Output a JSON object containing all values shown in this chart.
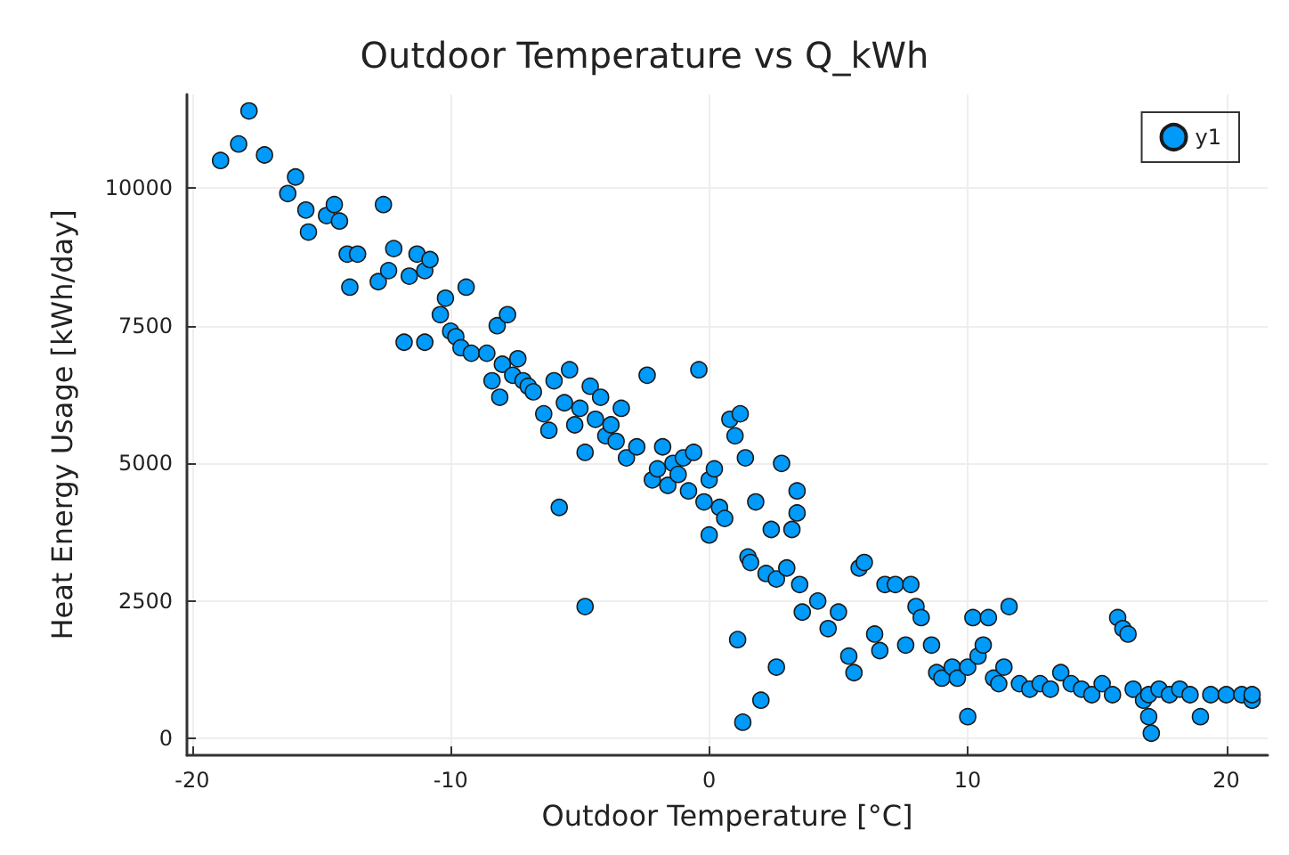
{
  "chart_data": {
    "type": "scatter",
    "title": "Outdoor Temperature vs Q_kWh",
    "xlabel": "Outdoor Temperature [°C]",
    "ylabel": "Heat Energy Usage [kWh/day]",
    "xlim": [
      -20.2,
      21.6
    ],
    "xticks": [
      -20,
      -10,
      0,
      10,
      20
    ],
    "ylim": [
      -300,
      11700
    ],
    "yticks": [
      0,
      2500,
      5000,
      7500,
      10000
    ],
    "grid": true,
    "legend": "top right",
    "marker": "circle",
    "series": [
      {
        "name": "y1",
        "color": "#009afa",
        "x": [
          -18.9,
          -18.2,
          -17.8,
          -17.2,
          -16.3,
          -16,
          -15.6,
          -15.5,
          -14.8,
          -14.5,
          -14.3,
          -14,
          -13.9,
          -13.6,
          -12.8,
          -12.6,
          -12.4,
          -12.2,
          -11.8,
          -11.6,
          -11.3,
          -11,
          -11,
          -10.8,
          -10.4,
          -10.2,
          -10,
          -9.8,
          -9.6,
          -9.4,
          -9.2,
          -8.6,
          -8.4,
          -8.2,
          -8,
          -8.1,
          -7.8,
          -7.6,
          -7.4,
          -7.2,
          -7,
          -6.8,
          -6.4,
          -6.2,
          -6,
          -5.8,
          -5.6,
          -5.4,
          -5.2,
          -5,
          -4.8,
          -4.8,
          -4.6,
          -4.4,
          -4.2,
          -4,
          -3.8,
          -3.6,
          -3.4,
          -3.2,
          -2.8,
          -2.4,
          -2.2,
          -2,
          -1.8,
          -1.6,
          -1.4,
          -1.2,
          -1,
          -0.8,
          -0.6,
          -0.4,
          -0.2,
          0,
          0,
          0.2,
          0.4,
          0.6,
          0.8,
          1,
          1.1,
          1.2,
          1.3,
          1.4,
          1.5,
          1.6,
          1.8,
          2,
          2.2,
          2.4,
          2.6,
          2.6,
          2.8,
          3,
          3.2,
          3.4,
          3.4,
          3.5,
          3.6,
          4.2,
          4.6,
          5,
          5.4,
          5.6,
          5.8,
          6,
          6.4,
          6.6,
          6.8,
          7.2,
          7.6,
          7.8,
          8,
          8.2,
          8.6,
          8.8,
          9,
          9.4,
          9.6,
          10,
          10,
          10.2,
          10.4,
          10.6,
          10.8,
          11,
          11.2,
          11.4,
          11.6,
          12,
          12.4,
          12.8,
          13.2,
          13.6,
          14,
          14.4,
          14.8,
          15.2,
          15.6,
          15.8,
          16,
          16.2,
          16.4,
          16.8,
          17,
          17,
          17.1,
          17.4,
          17.8,
          18.2,
          18.6,
          19,
          19.4,
          20,
          20.6,
          21,
          21
        ],
        "values": [
          10500,
          10800,
          11400,
          10600,
          9900,
          10200,
          9600,
          9200,
          9500,
          9700,
          9400,
          8800,
          8200,
          8800,
          8300,
          9700,
          8500,
          8900,
          7200,
          8400,
          8800,
          7200,
          8500,
          8700,
          7700,
          8000,
          7400,
          7300,
          7100,
          8200,
          7000,
          7000,
          6500,
          7500,
          6800,
          6200,
          7700,
          6600,
          6900,
          6500,
          6400,
          6300,
          5900,
          5600,
          6500,
          4200,
          6100,
          6700,
          5700,
          6000,
          5200,
          2400,
          6400,
          5800,
          6200,
          5500,
          5700,
          5400,
          6000,
          5100,
          5300,
          6600,
          4700,
          4900,
          5300,
          4600,
          5000,
          4800,
          5100,
          4500,
          5200,
          6700,
          4300,
          4700,
          3700,
          4900,
          4200,
          4000,
          5800,
          5500,
          1800,
          5900,
          300,
          5100,
          3300,
          3200,
          4300,
          700,
          3000,
          3800,
          2900,
          1300,
          5000,
          3100,
          3800,
          4100,
          4500,
          2800,
          2300,
          2500,
          2000,
          2300,
          1500,
          1200,
          3100,
          3200,
          1900,
          1600,
          2800,
          2800,
          1700,
          2800,
          2400,
          2200,
          1700,
          1200,
          1100,
          1300,
          1100,
          1300,
          400,
          2200,
          1500,
          1700,
          2200,
          1100,
          1000,
          1300,
          2400,
          1000,
          900,
          1000,
          900,
          1200,
          1000,
          900,
          800,
          1000,
          800,
          2200,
          2000,
          1900,
          900,
          700,
          800,
          400,
          100,
          900,
          800,
          900,
          800,
          400,
          800,
          800,
          800,
          700,
          800
        ]
      }
    ]
  }
}
